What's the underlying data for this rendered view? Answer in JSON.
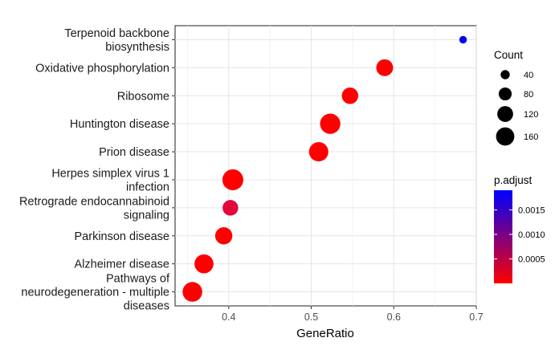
{
  "chart_data": {
    "type": "scatter",
    "xlabel": "GeneRatio",
    "ylabel": "",
    "xlim": [
      0.335,
      0.7
    ],
    "x_ticks": [
      "0.4",
      "0.5",
      "0.6",
      "0.7"
    ],
    "x_tick_values": [
      0.4,
      0.5,
      0.6,
      0.7
    ],
    "grid": true,
    "legend_placement": "right",
    "size_legend": {
      "title": "Count",
      "entries": [
        {
          "label": "40",
          "value": 40
        },
        {
          "label": "80",
          "value": 80
        },
        {
          "label": "120",
          "value": 120
        },
        {
          "label": "160",
          "value": 160
        }
      ]
    },
    "color_legend": {
      "title": "p.adjust",
      "low_color": "#ff0000",
      "high_color": "#0000ff",
      "range": [
        0.0,
        0.0019
      ],
      "ticks": [
        "0.0005",
        "0.0010",
        "0.0015"
      ],
      "tick_values": [
        0.0005,
        0.001,
        0.0015
      ]
    },
    "points": [
      {
        "term": [
          "Terpenoid backbone",
          "biosynthesis"
        ],
        "gene_ratio": 0.684,
        "count": 22,
        "p_adjust": 0.0019,
        "color": "#0000ff"
      },
      {
        "term": [
          "Oxidative phosphorylation"
        ],
        "gene_ratio": 0.589,
        "count": 110,
        "p_adjust": 1e-05,
        "color": "#ff0000"
      },
      {
        "term": [
          "Ribosome"
        ],
        "gene_ratio": 0.547,
        "count": 105,
        "p_adjust": 1e-05,
        "color": "#ff0000"
      },
      {
        "term": [
          "Huntington disease"
        ],
        "gene_ratio": 0.523,
        "count": 160,
        "p_adjust": 1e-05,
        "color": "#ff0000"
      },
      {
        "term": [
          "Prion disease"
        ],
        "gene_ratio": 0.509,
        "count": 145,
        "p_adjust": 1e-05,
        "color": "#ff0000"
      },
      {
        "term": [
          "Herpes simplex virus 1",
          "infection"
        ],
        "gene_ratio": 0.405,
        "count": 170,
        "p_adjust": 1e-05,
        "color": "#ff0000"
      },
      {
        "term": [
          "Retrograde endocannabinoid",
          "signaling"
        ],
        "gene_ratio": 0.402,
        "count": 95,
        "p_adjust": 0.0003,
        "color": "#e3073c"
      },
      {
        "term": [
          "Parkinson disease"
        ],
        "gene_ratio": 0.394,
        "count": 115,
        "p_adjust": 1e-05,
        "color": "#ff0000"
      },
      {
        "term": [
          "Alzheimer disease"
        ],
        "gene_ratio": 0.37,
        "count": 140,
        "p_adjust": 1e-05,
        "color": "#ff0000"
      },
      {
        "term": [
          "Pathways of",
          "neurodegeneration - multiple",
          "diseases"
        ],
        "gene_ratio": 0.356,
        "count": 150,
        "p_adjust": 1e-05,
        "color": "#ff0000"
      }
    ]
  }
}
